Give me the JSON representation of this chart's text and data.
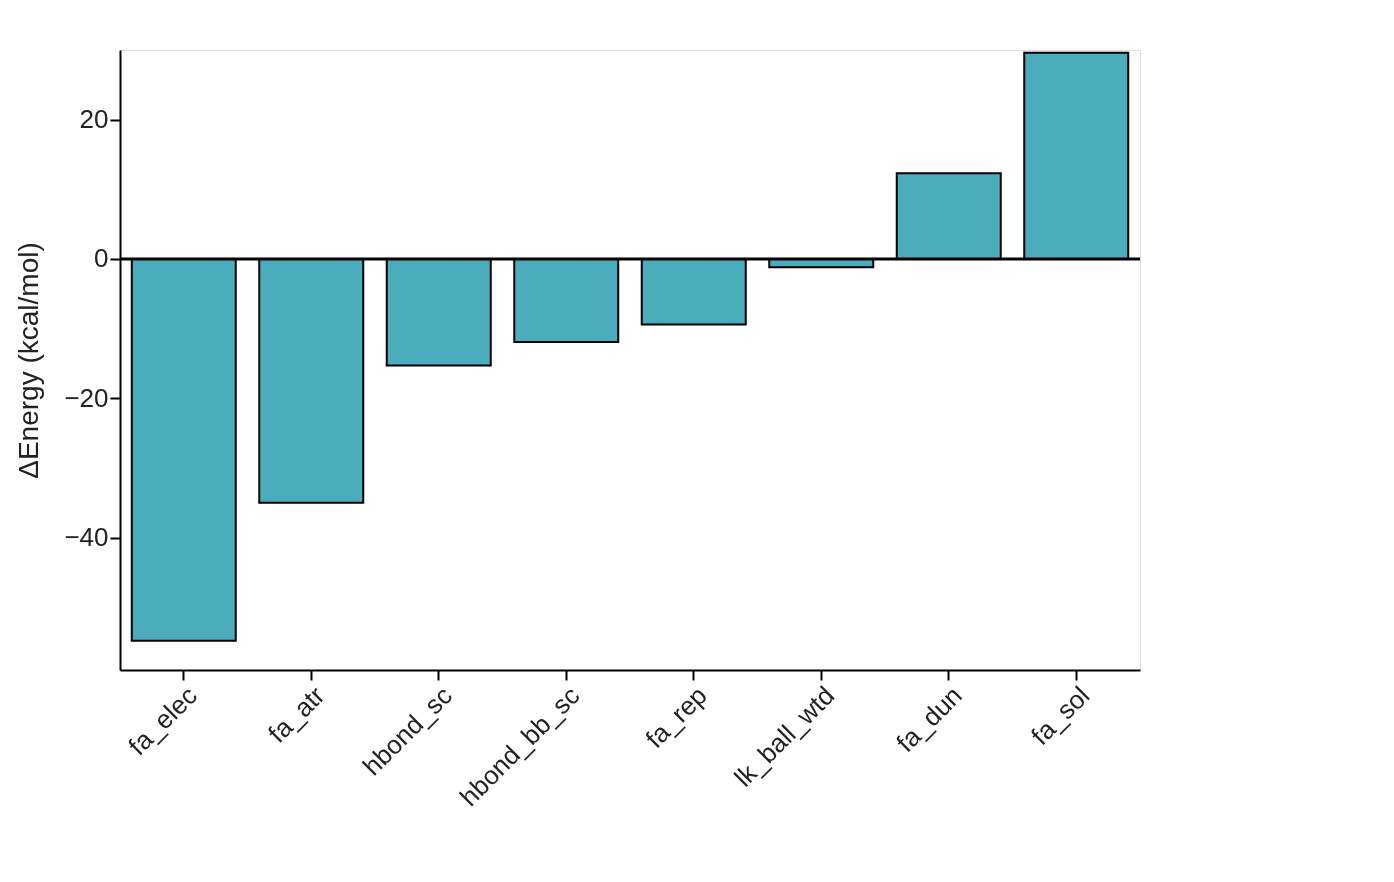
{
  "chart_data": {
    "type": "bar",
    "ylabel": "ΔEnergy (kcal/mol)",
    "categories": [
      "fa_elec",
      "fa_atr",
      "hbond_sc",
      "hbond_bb_sc",
      "fa_rep",
      "lk_ball_wtd",
      "fa_dun",
      "fa_sol"
    ],
    "values": [
      -54.8,
      -35.0,
      -15.3,
      -11.9,
      -9.4,
      -1.2,
      12.3,
      29.6
    ],
    "color": "#4bacbc",
    "ylim": [
      -59,
      30
    ],
    "yticks": [
      -40,
      -20,
      0,
      20
    ],
    "grid": false,
    "ref_lines": [
      {
        "axis": "y",
        "value": 0,
        "color": "#000000"
      }
    ]
  }
}
